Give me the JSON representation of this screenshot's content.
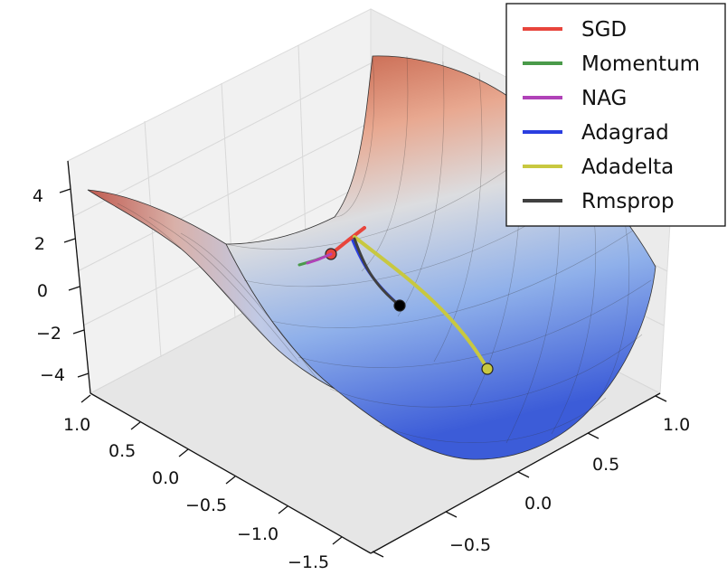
{
  "chart_data": {
    "type": "surface3d",
    "surface": "saddle",
    "colormap": "coolwarm",
    "z_ticks": [
      "4",
      "2",
      "0",
      "−2",
      "−4"
    ],
    "y_ticks": [
      "1.0",
      "0.5",
      "0.0",
      "−0.5",
      "−1.0",
      "−1.5"
    ],
    "x_ticks": [
      "1.0",
      "0.5",
      "0.0",
      "−0.5"
    ],
    "zlim": [
      -4,
      4
    ],
    "grid": true,
    "legend_position": "top-right",
    "series": [
      {
        "name": "SGD",
        "color": "#e8453c"
      },
      {
        "name": "Momentum",
        "color": "#4a9a4a"
      },
      {
        "name": "NAG",
        "color": "#b042b8"
      },
      {
        "name": "Adagrad",
        "color": "#2a3ee0"
      },
      {
        "name": "Adadelta",
        "color": "#c8c840"
      },
      {
        "name": "Rmsprop",
        "color": "#404040"
      }
    ]
  }
}
